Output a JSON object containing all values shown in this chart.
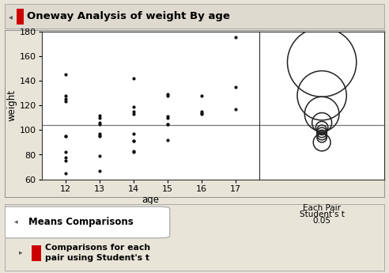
{
  "title": "Oneway Analysis of weight By age",
  "xlabel": "age",
  "ylabel": "weight",
  "ylim": [
    60,
    180
  ],
  "yticks": [
    60,
    80,
    100,
    120,
    140,
    160,
    180
  ],
  "mean_line_y": 104,
  "bg_color": "#e8e5d8",
  "plot_bg": "#ffffff",
  "scatter_data": {
    "12": [
      65,
      75,
      78,
      82,
      95,
      95,
      123,
      125,
      128,
      145
    ],
    "13": [
      67,
      79,
      95,
      96,
      97,
      105,
      106,
      110,
      112
    ],
    "14": [
      82,
      83,
      91,
      91,
      97,
      113,
      115,
      119,
      142
    ],
    "15": [
      92,
      105,
      105,
      110,
      111,
      128,
      129
    ],
    "16": [
      113,
      114,
      115,
      128
    ],
    "17": [
      117,
      135,
      175
    ]
  },
  "circle_panel_label1": "Each Pair",
  "circle_panel_label2": "Student's t",
  "circle_panel_label3": "0.05",
  "header_color": "#dedad0",
  "means_section_title": "Means Comparisons",
  "means_section_sub": "Comparisons for each\npair using Student's t",
  "scatter_color": "#111111",
  "scatter_size": 4,
  "title_fontsize": 9.5,
  "axis_fontsize": 8.5,
  "tick_fontsize": 8
}
